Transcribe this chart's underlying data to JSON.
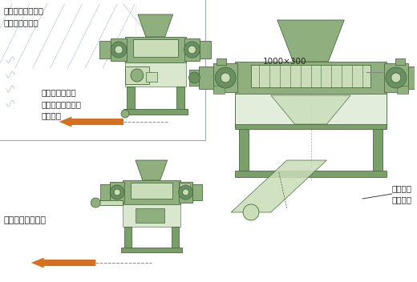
{
  "bg_color": "#ffffff",
  "mc": "#8faf7e",
  "me": "#4a6a40",
  "ml": "#c8ddb8",
  "md": "#6a8f60",
  "fc": "#7a9f6a",
  "ac": "#d47020",
  "tc": "#222222",
  "sk": "#b8c8d8",
  "ann_top": "・人手による投入\n・コンベア投入",
  "ann_mid": "別売、粉砕機で\n即座に粉砕処理・\n微粉空送",
  "ann_bot": "このまま空送可能",
  "ann_dim": "1000×300",
  "ann_conv": "コンベア\n取り出し"
}
